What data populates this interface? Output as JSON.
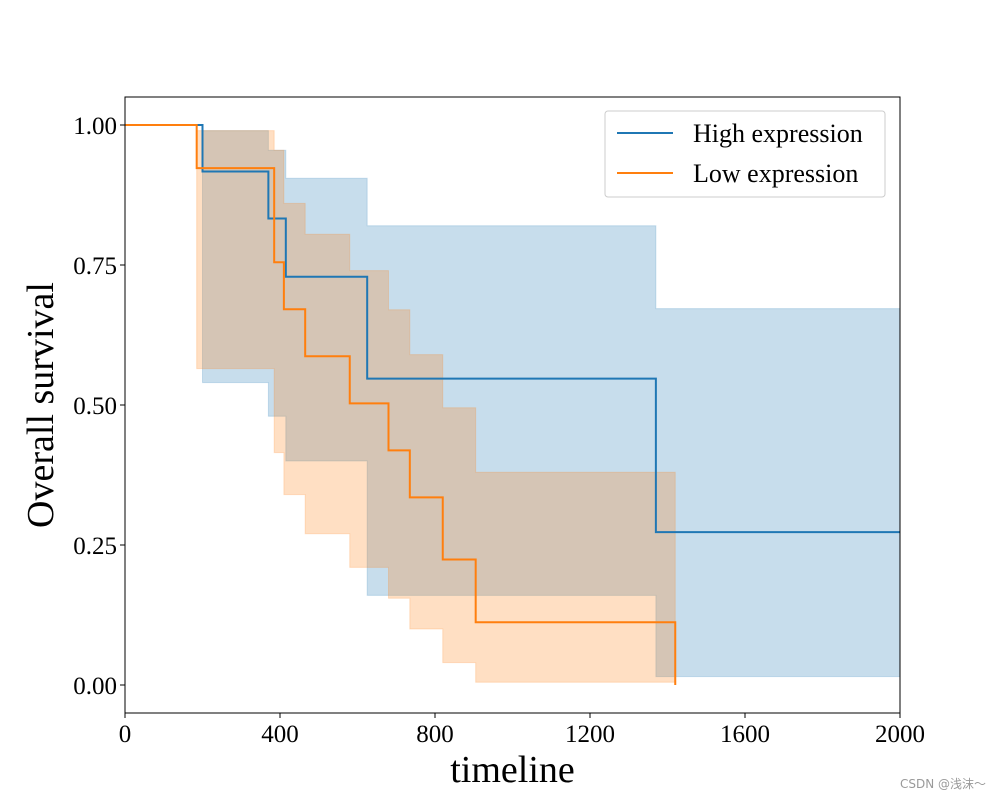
{
  "chart_data": {
    "type": "line",
    "xlabel": "timeline",
    "ylabel": "Overall survival",
    "xlim": [
      0,
      2000
    ],
    "ylim": [
      -0.05,
      1.05
    ],
    "x_ticks": [
      0,
      400,
      800,
      1200,
      1600,
      2000
    ],
    "x_tick_labels": [
      "0",
      "400",
      "800",
      "1200",
      "1600",
      "2000"
    ],
    "y_ticks": [
      0.0,
      0.25,
      0.5,
      0.75,
      1.0
    ],
    "y_tick_labels": [
      "0.00",
      "0.25",
      "0.50",
      "0.75",
      "1.00"
    ],
    "grid": false,
    "legend_position": "top-right",
    "series": [
      {
        "name": "High expression",
        "color": "#1f77b4",
        "ci_color": "#1f77b4",
        "step_x": [
          0,
          200,
          370,
          415,
          625,
          1370,
          2000
        ],
        "survival": [
          1.0,
          0.917,
          0.833,
          0.729,
          0.547,
          0.273,
          0.273
        ],
        "ci_lower": [
          1.0,
          0.54,
          0.48,
          0.4,
          0.16,
          0.015,
          0.015
        ],
        "ci_upper": [
          1.0,
          0.99,
          0.955,
          0.905,
          0.82,
          0.672,
          0.672
        ]
      },
      {
        "name": "Low expression",
        "color": "#ff7f0e",
        "ci_color": "#ff7f0e",
        "step_x": [
          0,
          185,
          385,
          410,
          465,
          580,
          680,
          735,
          820,
          905,
          1420
        ],
        "survival": [
          1.0,
          0.923,
          0.755,
          0.671,
          0.587,
          0.503,
          0.419,
          0.335,
          0.224,
          0.112,
          0.0
        ],
        "ci_lower": [
          1.0,
          0.565,
          0.415,
          0.34,
          0.27,
          0.21,
          0.155,
          0.1,
          0.04,
          0.005,
          0.005
        ],
        "ci_upper": [
          1.0,
          0.99,
          0.955,
          0.86,
          0.805,
          0.74,
          0.67,
          0.59,
          0.495,
          0.38,
          0.38
        ]
      }
    ]
  },
  "watermark": "CSDN @浅沫～"
}
